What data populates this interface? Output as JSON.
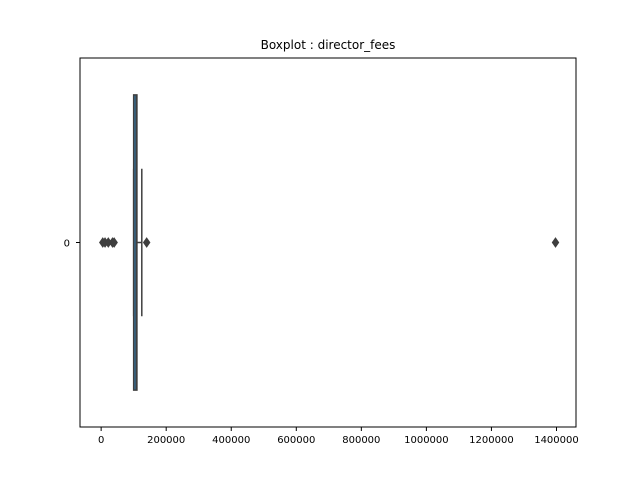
{
  "chart_data": {
    "type": "boxplot",
    "title": "Boxplot : director_fees",
    "xlabel": "",
    "ylabel": "",
    "xlim": [
      -65000,
      1460000
    ],
    "x_ticks": [
      0,
      200000,
      400000,
      600000,
      800000,
      1000000,
      1200000,
      1400000
    ],
    "x_tick_labels": [
      "0",
      "200000",
      "400000",
      "600000",
      "800000",
      "1000000",
      "1200000",
      "1400000"
    ],
    "y_categories": [
      "0"
    ],
    "grid": false,
    "boxes": [
      {
        "category": "0",
        "whisker_low": 100000,
        "q1": 100000,
        "median": 108000,
        "q3": 110000,
        "whisker_high": 125000,
        "outliers": [
          5000,
          12000,
          22000,
          35000,
          40000,
          140000,
          1397000
        ],
        "color": "#3274a1"
      }
    ]
  }
}
